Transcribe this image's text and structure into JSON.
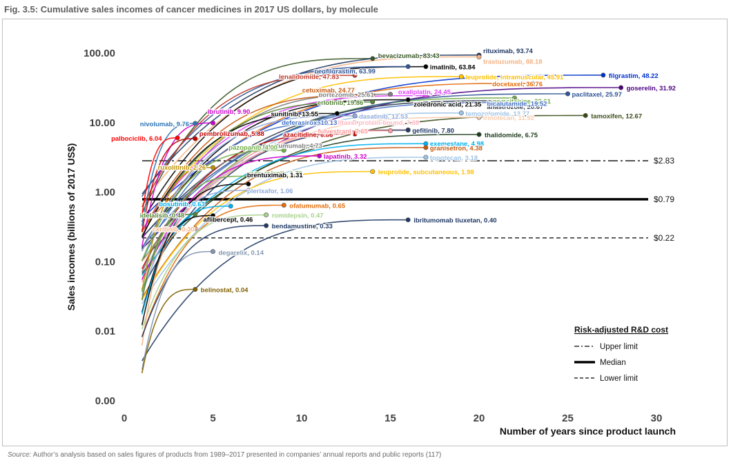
{
  "figure": {
    "title": "Fig. 3.5: Cumulative sales incomes of cancer medicines in 2017 US dollars, by molecule",
    "source_label": "Source:",
    "source_text": "Author’s analysis based on sales figures of products from 1989–2017 presented in companies’ annual reports and public reports (117)"
  },
  "chart_data": {
    "type": "line",
    "title": "Fig. 3.5: Cumulative sales incomes of cancer medicines in 2017 US dollars, by molecule",
    "xlabel": "Number of years since product launch",
    "ylabel": "Sales incomes (billions of 2017 US$)",
    "x_scale": "linear",
    "y_scale": "log",
    "xlim": [
      0,
      30
    ],
    "ylim": [
      0.001,
      100
    ],
    "x_ticks": [
      0,
      5,
      10,
      15,
      20,
      25,
      30
    ],
    "x_tick_labels": [
      "0",
      "5",
      "10",
      "15",
      "20",
      "25",
      "30"
    ],
    "y_ticks": [
      0.001,
      0.01,
      0.1,
      1,
      10,
      100
    ],
    "y_tick_labels": [
      "0.00",
      "0.01",
      "0.10",
      "1.00",
      "10.00",
      "100.00"
    ],
    "grid": false,
    "legend": {
      "title": "Risk-adjusted R&D cost",
      "position": "bottom-right",
      "entries": [
        {
          "label": "Upper limit",
          "style": "dashdot"
        },
        {
          "label": "Median",
          "style": "solid-thick"
        },
        {
          "label": "Lower limit",
          "style": "dashed"
        }
      ]
    },
    "reference_lines": [
      {
        "name": "Upper limit",
        "value": 2.83,
        "label": "$2.83",
        "style": "dashdot"
      },
      {
        "name": "Median",
        "value": 0.79,
        "label": "$0.79",
        "style": "solid-thick"
      },
      {
        "name": "Lower limit",
        "value": 0.22,
        "label": "$0.22",
        "style": "dashed"
      }
    ],
    "series": [
      {
        "name": "bevacizumab",
        "end_x": 14,
        "end_y": 83.43,
        "label": "bevacizumab, 83.43",
        "color": "#375623"
      },
      {
        "name": "rituximab",
        "end_x": 20,
        "end_y": 93.74,
        "label": "rituximab, 93.74",
        "color": "#203864"
      },
      {
        "name": "trastuzumab",
        "end_x": 20,
        "end_y": 88.18,
        "label": "trastuzumab, 88.18",
        "color": "#f4b183"
      },
      {
        "name": "imatinib",
        "end_x": 17,
        "end_y": 63.84,
        "label": "imatinib, 63.84",
        "color": "#000000"
      },
      {
        "name": "pegfilgrastim",
        "end_x": 16,
        "end_y": 63.99,
        "label": "pegfilgrastim, 63.99",
        "color": "#2f5597"
      },
      {
        "name": "lenalidomide",
        "end_x": 13,
        "end_y": 47.83,
        "label": "lenalidomide, 47.83",
        "color": "#c0392b"
      },
      {
        "name": "leuprolide, intramuscular",
        "end_x": 19,
        "end_y": 45.91,
        "label": "leuprolide, intramuscular, 45.91",
        "color": "#ffc000"
      },
      {
        "name": "filgrastim",
        "end_x": 27,
        "end_y": 48.22,
        "label": "filgrastim, 48.22",
        "color": "#0033cc"
      },
      {
        "name": "docetaxel",
        "end_x": 23,
        "end_y": 36.76,
        "label": "docetaxel, 36.76",
        "color": "#e46c0a"
      },
      {
        "name": "goserelin",
        "end_x": 28,
        "end_y": 31.92,
        "label": "goserelin, 31.92",
        "color": "#4b0082"
      },
      {
        "name": "bortezomib",
        "end_x": 15,
        "end_y": 25.61,
        "label": "bortezomib, 25.61",
        "color": "#7f7f7f"
      },
      {
        "name": "oxaliplatin",
        "end_x": 17,
        "end_y": 24.45,
        "label": "oxaliplatin, 24.45",
        "color": "#e040fb"
      },
      {
        "name": "cetuximab",
        "end_x": 14,
        "end_y": 24.77,
        "label": "cetuximab, 24.77",
        "color": "#c55a11"
      },
      {
        "name": "gemcitabine",
        "end_x": 22,
        "end_y": 22.61,
        "label": "gemcitabine, 22.61",
        "color": "#70ad47"
      },
      {
        "name": "paclitaxel",
        "end_x": 25,
        "end_y": 25.97,
        "label": "paclitaxel, 25.97",
        "color": "#305496"
      },
      {
        "name": "erlotinib",
        "end_x": 14,
        "end_y": 19.86,
        "label": "erlotinib, 19.86",
        "color": "#548235"
      },
      {
        "name": "zoledronic acid",
        "end_x": 16,
        "end_y": 21.35,
        "label": "zoledronic acid, 21.35",
        "color": "#000000"
      },
      {
        "name": "anastrozole",
        "end_x": 22,
        "end_y": 20.67,
        "label": "anastrozole, 20.67",
        "color": "#333f50"
      },
      {
        "name": "bicalutamide",
        "end_x": 22,
        "end_y": 19.52,
        "label": "bicalutamide, 19.52",
        "color": "#4472c4"
      },
      {
        "name": "nivolumab",
        "end_x": 4,
        "end_y": 9.76,
        "label": "nivolumab, 9.76",
        "color": "#2e75b6"
      },
      {
        "name": "ibrutinib",
        "end_x": 5,
        "end_y": 9.9,
        "label": "ibrutinib, 9.90",
        "color": "#cc00cc"
      },
      {
        "name": "sunitinib",
        "end_x": 12,
        "end_y": 13.55,
        "label": "sunitinib, 13.55",
        "color": "#000000"
      },
      {
        "name": "dasatinib",
        "end_x": 13,
        "end_y": 12.53,
        "label": "dasatinib, 12.53",
        "color": "#8faadc"
      },
      {
        "name": "temozolomide",
        "end_x": 19,
        "end_y": 13.77,
        "label": "temozolomide, 13.77",
        "color": "#9dc3e6"
      },
      {
        "name": "tamoxifen",
        "end_x": 26,
        "end_y": 12.67,
        "label": "tamoxifen, 12.67",
        "color": "#3a4a15"
      },
      {
        "name": "irinotecan",
        "end_x": 20,
        "end_y": 11.92,
        "label": "irinotecan, 11.92",
        "color": "#f8cbad"
      },
      {
        "name": "paclitaxel protein-bound",
        "end_x": 16,
        "end_y": 7.88,
        "label": "paclitaxel protein-bound, 7.88",
        "color": "#ffb6c1"
      },
      {
        "name": "palbociclib",
        "end_x": 3,
        "end_y": 6.04,
        "label": "palbociclib, 6.04",
        "color": "#ff0000"
      },
      {
        "name": "pembrolizumab",
        "end_x": 4,
        "end_y": 5.88,
        "label": "pembrolizumab, 5.88",
        "color": "#c00000"
      },
      {
        "name": "deferasirox",
        "end_x": 13,
        "end_y": 10.13,
        "label": "deferasirox, 10.13",
        "color": "#4472c4"
      },
      {
        "name": "gefitinib",
        "end_x": 16,
        "end_y": 7.8,
        "label": "gefitinib, 7.80",
        "color": "#203864"
      },
      {
        "name": "thalidomide",
        "end_x": 20,
        "end_y": 6.75,
        "label": "thalidomide, 6.75",
        "color": "#1e3d1e"
      },
      {
        "name": "azacitidine",
        "end_x": 13,
        "end_y": 6.86,
        "label": "azacitidine, 6.86",
        "color": "#c00000"
      },
      {
        "name": "fulvestrant",
        "end_x": 15,
        "end_y": 7.65,
        "label": "fulvestrant, 7.65",
        "color": "#ff9999"
      },
      {
        "name": "exemestane",
        "end_x": 17,
        "end_y": 4.98,
        "label": "exemestane, 4.98",
        "color": "#00b0f0"
      },
      {
        "name": "panitumumab",
        "end_x": 11,
        "end_y": 4.73,
        "label": "panitumumab, 4.73",
        "color": "#7f7f7f"
      },
      {
        "name": "granisetron",
        "end_x": 17,
        "end_y": 4.38,
        "label": "granisetron, 4.38",
        "color": "#c55a11"
      },
      {
        "name": "pazopanib",
        "end_x": 9,
        "end_y": 4.0,
        "label": "pazopanib, 4.00",
        "color": "#70ad47"
      },
      {
        "name": "lapatinib",
        "end_x": 11,
        "end_y": 3.32,
        "label": "lapatinib, 3.32",
        "color": "#cc00cc"
      },
      {
        "name": "topotecan",
        "end_x": 17,
        "end_y": 3.18,
        "label": "topotecan, 3.18",
        "color": "#9dc3e6"
      },
      {
        "name": "ruxolitinib",
        "end_x": 5,
        "end_y": 2.26,
        "label": "ruxolitinib, 2.26",
        "color": "#bf9000"
      },
      {
        "name": "leuprolide, subcutaneous",
        "end_x": 14,
        "end_y": 1.98,
        "label": "leuprolide, subcutaneous, 1.98",
        "color": "#ffc000"
      },
      {
        "name": "vemurafenib",
        "end_x": 7,
        "end_y": 1.7,
        "label": "vemurafenib, 1.70",
        "color": "#70ad47"
      },
      {
        "name": "brentuximab",
        "end_x": 7,
        "end_y": 1.31,
        "label": "brentuximab, 1.31",
        "color": "#000000"
      },
      {
        "name": "plerixafor",
        "end_x": 7,
        "end_y": 1.06,
        "label": "plerixafor, 1.06",
        "color": "#8faadc"
      },
      {
        "name": "bosutinib",
        "end_x": 6,
        "end_y": 0.63,
        "label": "bosutinib, 0.63",
        "color": "#00b0f0"
      },
      {
        "name": "ofatumumab",
        "end_x": 9,
        "end_y": 0.65,
        "label": "ofatumumab, 0.65",
        "color": "#e46c0a"
      },
      {
        "name": "idelalisib",
        "end_x": 4,
        "end_y": 0.48,
        "label": "idelalisib, 0.48",
        "color": "#548235"
      },
      {
        "name": "romidepsin",
        "end_x": 8,
        "end_y": 0.47,
        "label": "romidepsin, 0.47",
        "color": "#a9d18e"
      },
      {
        "name": "aflibercept",
        "end_x": 5,
        "end_y": 0.46,
        "label": "aflibercept, 0.46",
        "color": "#000000"
      },
      {
        "name": "ceritinib",
        "end_x": 4,
        "end_y": 0.3,
        "label": "ceritinib, 0.30",
        "color": "#f4b183"
      },
      {
        "name": "bendamustine",
        "end_x": 8,
        "end_y": 0.33,
        "label": "bendamustine, 0.33",
        "color": "#203864"
      },
      {
        "name": "ibritumomab tiuxetan",
        "end_x": 16,
        "end_y": 0.4,
        "label": "ibritumomab tiuxetan, 0.40",
        "color": "#1f3864"
      },
      {
        "name": "degarelix",
        "end_x": 5,
        "end_y": 0.14,
        "label": "degarelix, 0.14",
        "color": "#8497b0"
      },
      {
        "name": "belinostat",
        "end_x": 4,
        "end_y": 0.04,
        "label": "belinostat, 0.04",
        "color": "#806000"
      }
    ]
  }
}
